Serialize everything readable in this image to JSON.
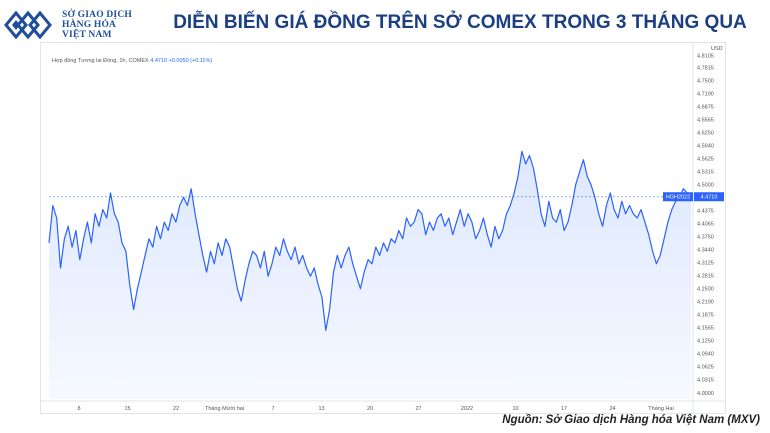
{
  "logo": {
    "lines": [
      "SỞ GIAO DỊCH",
      "HÀNG HÓA",
      "VIỆT NAM"
    ]
  },
  "header": {
    "title": "DIỄN BIẾN GIÁ ĐỒNG TRÊN SỞ COMEX TRONG 3 THÁNG QUA"
  },
  "legend": {
    "symbol": "Hợp đồng Tương lai Đồng, 1h, COMEX",
    "last": "4.4710",
    "change": "+0.0050 (+0.11%)"
  },
  "price_label": {
    "symbol": "HGH2022",
    "value": "4.4710"
  },
  "footer": {
    "source": "Nguồn: Sở Giao dịch Hàng hóa Việt Nam (MXV)"
  },
  "colors": {
    "line": "#2962ff",
    "area": "#dbe6ff",
    "title": "#1c3f82",
    "logo": "#1f4e9a"
  },
  "chart_data": {
    "type": "area",
    "currency_label": "USD",
    "x_ticks": [
      "8",
      "15",
      "22",
      "Tháng Mười hai",
      "7",
      "13",
      "20",
      "27",
      "2022",
      "10",
      "17",
      "24",
      "Tháng Hai"
    ],
    "y_ticks": [
      "4.8105",
      "4.7815",
      "4.7500",
      "4.7190",
      "4.6875",
      "4.6565",
      "4.6250",
      "4.5940",
      "4.5625",
      "4.5315",
      "4.5000",
      "4.4690",
      "4.4375",
      "4.4065",
      "4.3750",
      "4.3440",
      "4.3125",
      "4.2815",
      "4.2500",
      "4.2190",
      "4.1875",
      "4.1565",
      "4.1250",
      "4.0940",
      "4.0625",
      "4.0315",
      "4.0000"
    ],
    "ylim": [
      3.985,
      4.826
    ],
    "last_value": 4.471,
    "series": [
      {
        "values": [
          4.36,
          4.45,
          4.42,
          4.3,
          4.37,
          4.4,
          4.35,
          4.39,
          4.32,
          4.37,
          4.41,
          4.36,
          4.43,
          4.4,
          4.44,
          4.42,
          4.48,
          4.43,
          4.41,
          4.36,
          4.34,
          4.26,
          4.2,
          4.25,
          4.29,
          4.33,
          4.37,
          4.35,
          4.4,
          4.37,
          4.41,
          4.39,
          4.43,
          4.41,
          4.45,
          4.47,
          4.45,
          4.49,
          4.43,
          4.38,
          4.33,
          4.29,
          4.34,
          4.31,
          4.36,
          4.33,
          4.37,
          4.35,
          4.3,
          4.25,
          4.22,
          4.27,
          4.31,
          4.34,
          4.33,
          4.3,
          4.34,
          4.28,
          4.31,
          4.35,
          4.33,
          4.37,
          4.34,
          4.32,
          4.35,
          4.31,
          4.33,
          4.3,
          4.28,
          4.3,
          4.26,
          4.23,
          4.15,
          4.2,
          4.29,
          4.33,
          4.3,
          4.33,
          4.35,
          4.31,
          4.28,
          4.25,
          4.29,
          4.32,
          4.31,
          4.35,
          4.33,
          4.36,
          4.34,
          4.37,
          4.36,
          4.39,
          4.37,
          4.42,
          4.4,
          4.41,
          4.44,
          4.43,
          4.38,
          4.41,
          4.39,
          4.42,
          4.43,
          4.4,
          4.42,
          4.38,
          4.41,
          4.44,
          4.4,
          4.43,
          4.41,
          4.37,
          4.39,
          4.42,
          4.38,
          4.35,
          4.4,
          4.37,
          4.39,
          4.43,
          4.45,
          4.48,
          4.52,
          4.58,
          4.55,
          4.57,
          4.54,
          4.49,
          4.43,
          4.4,
          4.46,
          4.42,
          4.41,
          4.44,
          4.39,
          4.41,
          4.45,
          4.5,
          4.53,
          4.56,
          4.52,
          4.5,
          4.47,
          4.43,
          4.4,
          4.45,
          4.48,
          4.44,
          4.42,
          4.46,
          4.43,
          4.45,
          4.43,
          4.42,
          4.44,
          4.41,
          4.38,
          4.34,
          4.31,
          4.33,
          4.37,
          4.41,
          4.44,
          4.46,
          4.47,
          4.49,
          4.48,
          4.471
        ]
      }
    ]
  }
}
